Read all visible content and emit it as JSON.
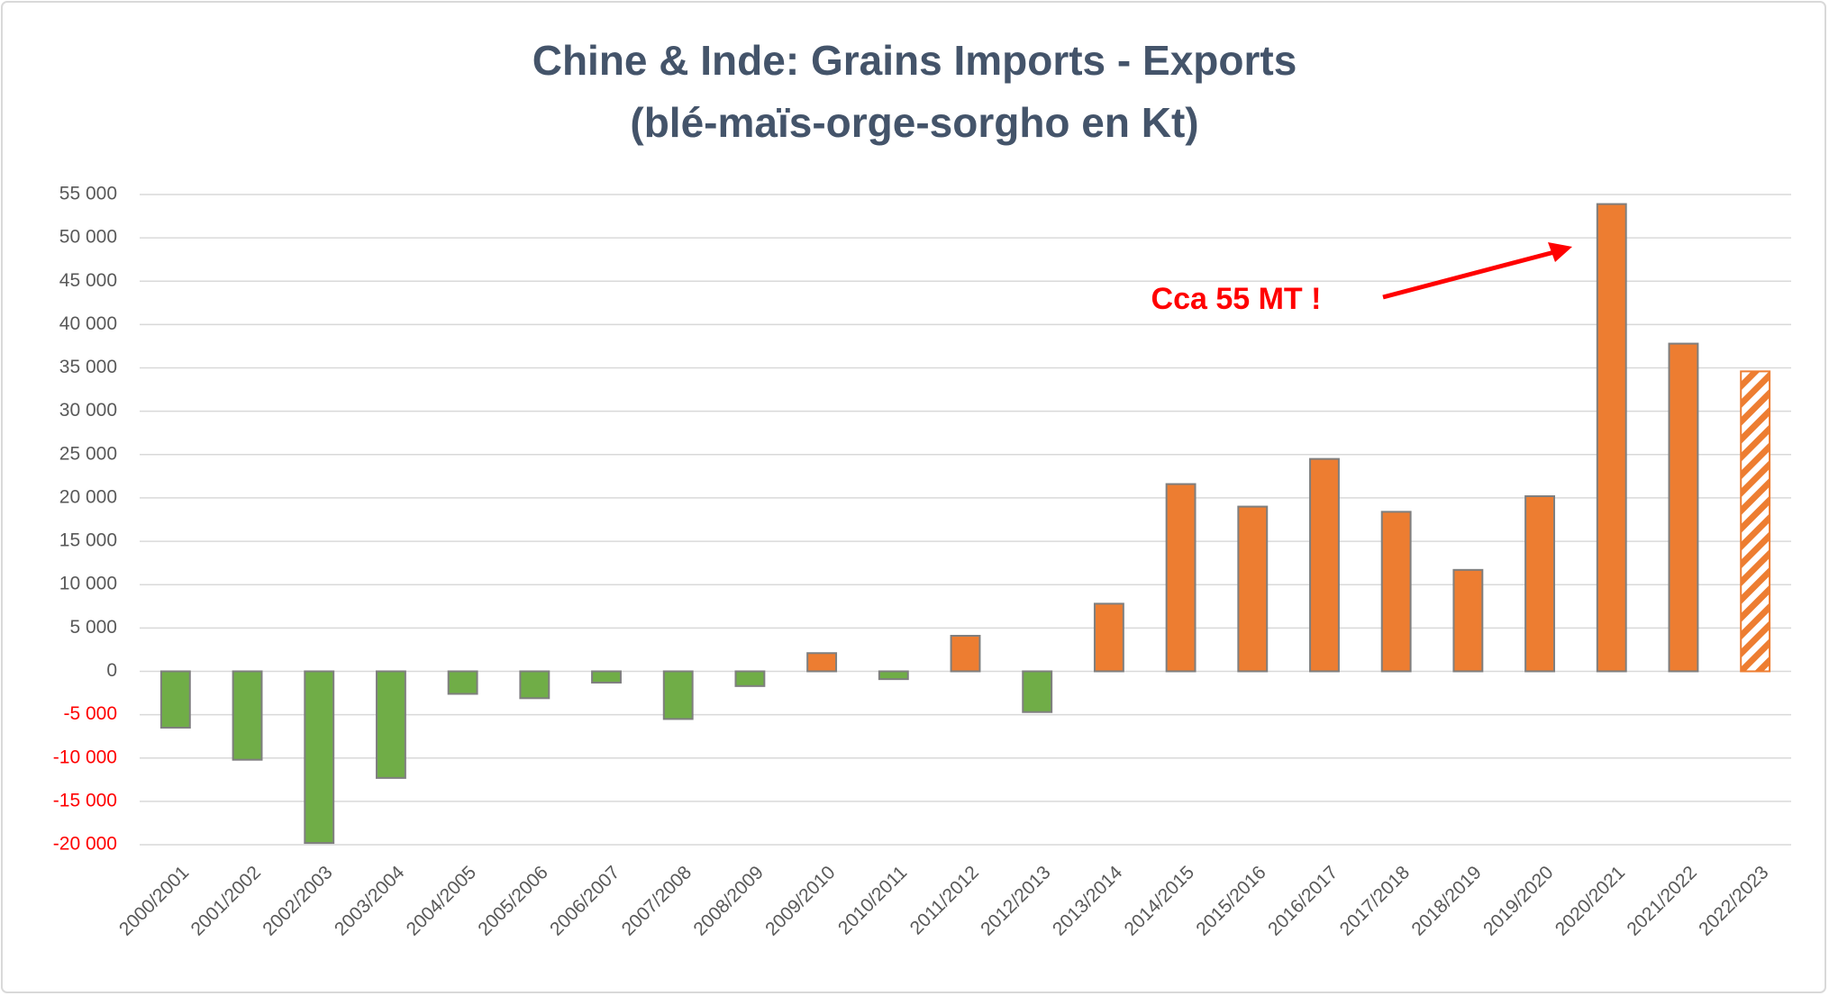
{
  "chart_data": {
    "type": "bar",
    "title": "Chine & Inde: Grains Imports - Exports",
    "subtitle": "(blé-maïs-orge-sorgho en Kt)",
    "annotation": "Cca 55 MT !",
    "annotation_color": "#ff0000",
    "categories": [
      "2000/2001",
      "2001/2002",
      "2002/2003",
      "2003/2004",
      "2004/2005",
      "2005/2006",
      "2006/2007",
      "2007/2008",
      "2008/2009",
      "2009/2010",
      "2010/2011",
      "2011/2012",
      "2012/2013",
      "2013/2014",
      "2014/2015",
      "2015/2016",
      "2016/2017",
      "2017/2018",
      "2018/2019",
      "2019/2020",
      "2020/2021",
      "2021/2022",
      "2022/2023"
    ],
    "values": [
      -6500,
      -10200,
      -19800,
      -12300,
      -2600,
      -3100,
      -1300,
      -5500,
      -1700,
      2100,
      -900,
      4100,
      -4700,
      7800,
      21600,
      19000,
      24500,
      18400,
      11700,
      20200,
      53900,
      37800,
      34600
    ],
    "positive_color": "#ed7d31",
    "negative_color": "#70ad47",
    "hatched": [
      false,
      false,
      false,
      false,
      false,
      false,
      false,
      false,
      false,
      false,
      false,
      false,
      false,
      false,
      false,
      false,
      false,
      false,
      false,
      false,
      false,
      false,
      true
    ],
    "ylim": [
      -20000,
      55000
    ],
    "yticks": [
      {
        "value": -20000,
        "label": "-20 000"
      },
      {
        "value": -15000,
        "label": "-15 000"
      },
      {
        "value": -10000,
        "label": "-10 000"
      },
      {
        "value": -5000,
        "label": "-5 000"
      },
      0,
      {
        "value": 5000,
        "label": "5 000"
      },
      {
        "value": 10000,
        "label": "10 000"
      },
      {
        "value": 15000,
        "label": "15 000"
      },
      {
        "value": 20000,
        "label": "20 000"
      },
      {
        "value": 25000,
        "label": "25 000"
      },
      {
        "value": 30000,
        "label": "30 000"
      },
      {
        "value": 35000,
        "label": "35 000"
      },
      {
        "value": 40000,
        "label": "40 000"
      },
      {
        "value": 45000,
        "label": "45 000"
      },
      {
        "value": 50000,
        "label": "50 000"
      },
      {
        "value": 55000,
        "label": "55 000"
      }
    ],
    "negative_tick_color": "#ff0000",
    "grid": true
  }
}
